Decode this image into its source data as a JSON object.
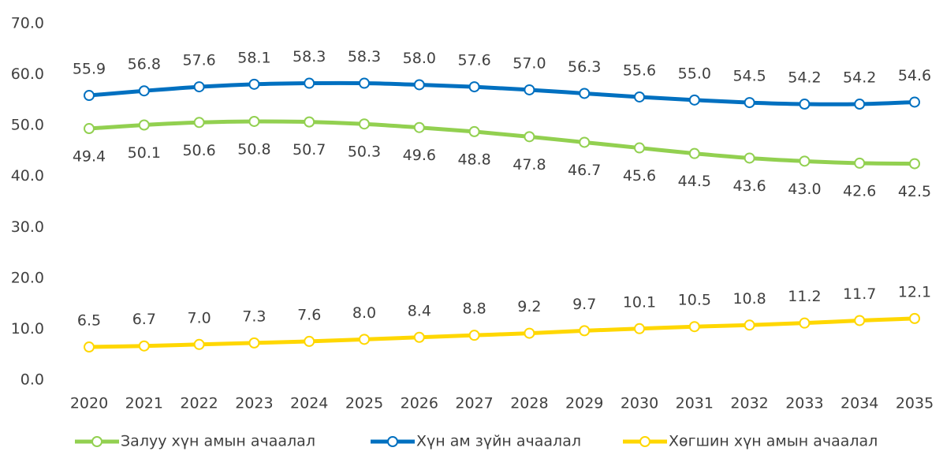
{
  "chart_data": {
    "type": "line",
    "categories": [
      "2020",
      "2021",
      "2022",
      "2023",
      "2024",
      "2025",
      "2026",
      "2027",
      "2028",
      "2029",
      "2030",
      "2031",
      "2032",
      "2033",
      "2034",
      "2035"
    ],
    "series": [
      {
        "name": "Залуу хүн амын ачаалал",
        "color": "#92d050",
        "values": [
          49.4,
          50.1,
          50.6,
          50.8,
          50.7,
          50.3,
          49.6,
          48.8,
          47.8,
          46.7,
          45.6,
          44.5,
          43.6,
          43.0,
          42.6,
          42.5
        ],
        "value_labels": [
          "49.4",
          "50.1",
          "50.6",
          "50.8",
          "50.7",
          "50.3",
          "49.6",
          "48.8",
          "47.8",
          "46.7",
          "45.6",
          "44.5",
          "43.6",
          "43.0",
          "42.6",
          "42.5"
        ]
      },
      {
        "name": "Хүн ам зүйн ачаалал",
        "color": "#0070c0",
        "values": [
          55.9,
          56.8,
          57.6,
          58.1,
          58.3,
          58.3,
          58.0,
          57.6,
          57.0,
          56.3,
          55.6,
          55.0,
          54.5,
          54.2,
          54.2,
          54.6
        ],
        "value_labels": [
          "55.9",
          "56.8",
          "57.6",
          "58.1",
          "58.3",
          "58.3",
          "58.0",
          "57.6",
          "57.0",
          "56.3",
          "55.6",
          "55.0",
          "54.5",
          "54.2",
          "54.2",
          "54.6"
        ]
      },
      {
        "name": "Хөгшин хүн амын ачаалал",
        "color": "#ffd700",
        "values": [
          6.5,
          6.7,
          7.0,
          7.3,
          7.6,
          8.0,
          8.4,
          8.8,
          9.2,
          9.7,
          10.1,
          10.5,
          10.8,
          11.2,
          11.7,
          12.1
        ],
        "value_labels": [
          "6.5",
          "6.7",
          "7.0",
          "7.3",
          "7.6",
          "8.0",
          "8.4",
          "8.8",
          "9.2",
          "9.7",
          "10.1",
          "10.5",
          "10.8",
          "11.2",
          "11.7",
          "12.1"
        ]
      }
    ],
    "ylim": [
      0,
      70
    ],
    "yticks": [
      {
        "value": 0,
        "label": "0.0"
      },
      {
        "value": 10,
        "label": "10.0"
      },
      {
        "value": 20,
        "label": "20.0"
      },
      {
        "value": 30,
        "label": "30.0"
      },
      {
        "value": 40,
        "label": "40.0"
      },
      {
        "value": 50,
        "label": "50.0"
      },
      {
        "value": 60,
        "label": "60.0"
      },
      {
        "value": 70,
        "label": "70.0"
      }
    ],
    "grid": false,
    "legend": "bottom"
  }
}
